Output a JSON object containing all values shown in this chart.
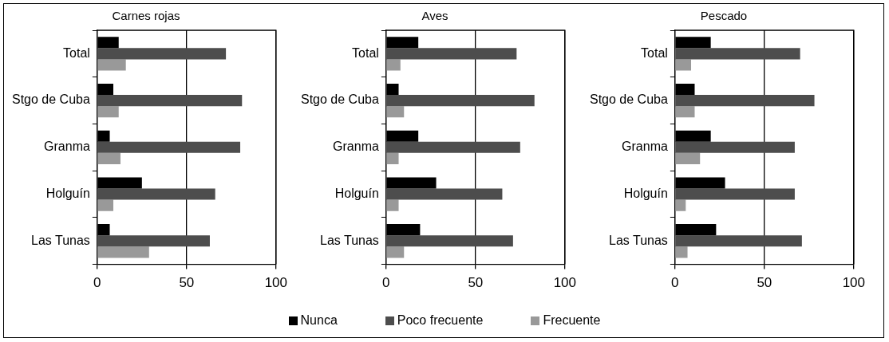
{
  "chart_data": [
    {
      "type": "bar",
      "orientation": "horizontal",
      "title": "Carnes rojas",
      "categories": [
        "Total",
        "Stgo de Cuba",
        "Granma",
        "Holguín",
        "Las Tunas"
      ],
      "xlim": [
        0,
        100
      ],
      "xticks": [
        0,
        50,
        100
      ],
      "grid": "x",
      "legend": "bottom",
      "series": [
        {
          "name": "Nunca",
          "color": "#000000",
          "values": [
            12,
            9,
            7,
            25,
            7
          ]
        },
        {
          "name": "Poco frecuente",
          "color": "#4d4d4d",
          "values": [
            72,
            81,
            80,
            66,
            63
          ]
        },
        {
          "name": "Frecuente",
          "color": "#999999",
          "values": [
            16,
            12,
            13,
            9,
            29
          ]
        }
      ]
    },
    {
      "type": "bar",
      "orientation": "horizontal",
      "title": "Aves",
      "categories": [
        "Total",
        "Stgo de Cuba",
        "Granma",
        "Holguín",
        "Las Tunas"
      ],
      "xlim": [
        0,
        100
      ],
      "xticks": [
        0,
        50,
        100
      ],
      "grid": "x",
      "series": [
        {
          "color": "#000000",
          "values": [
            18,
            7,
            18,
            28,
            19
          ]
        },
        {
          "color": "#4d4d4d",
          "values": [
            73,
            83,
            75,
            65,
            71
          ]
        },
        {
          "color": "#999999",
          "values": [
            8,
            10,
            7,
            7,
            10
          ]
        }
      ]
    },
    {
      "type": "bar",
      "orientation": "horizontal",
      "title": "Pescado",
      "categories": [
        "Total",
        "Stgo de Cuba",
        "Granma",
        "Holguín",
        "Las Tunas"
      ],
      "xlim": [
        0,
        100
      ],
      "xticks": [
        0,
        50,
        100
      ],
      "grid": "x",
      "series": [
        {
          "color": "#000000",
          "values": [
            20,
            11,
            20,
            28,
            23
          ]
        },
        {
          "color": "#4d4d4d",
          "values": [
            70,
            78,
            67,
            67,
            71
          ]
        },
        {
          "color": "#999999",
          "values": [
            9,
            11,
            14,
            6,
            7
          ]
        }
      ]
    }
  ]
}
